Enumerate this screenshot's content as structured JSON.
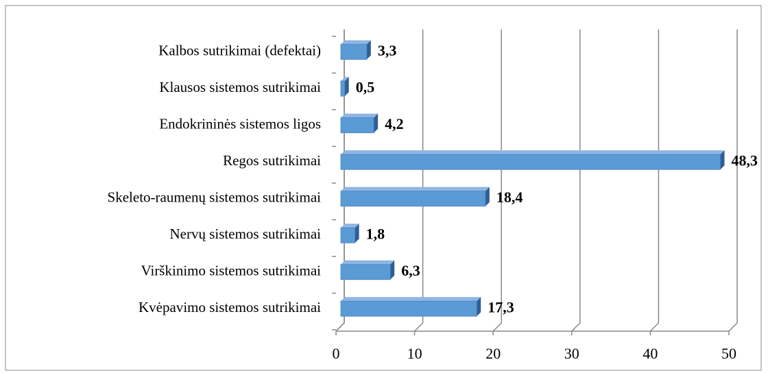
{
  "chart_data": {
    "type": "bar",
    "categories": [
      "Kalbos sutrikimai (defektai)",
      "Klausos sistemos sutrikimai",
      "Endokrininės sistemos ligos",
      "Regos sutrikimai",
      "Skeleto-raumenų sistemos sutrikimai",
      "Nervų sistemos sutrikimai",
      "Virškinimo sistemos sutrikimai",
      "Kvėpavimo sistemos sutrikimai"
    ],
    "values": [
      3.3,
      0.5,
      4.2,
      48.3,
      18.4,
      1.8,
      6.3,
      17.3
    ],
    "value_labels": [
      "3,3",
      "0,5",
      "4,2",
      "48,3",
      "18,4",
      "1,8",
      "6,3",
      "17,3"
    ],
    "color": "#5b9bd5",
    "xlim": [
      0,
      50
    ],
    "xticks": [
      0,
      10,
      20,
      30,
      40,
      50
    ],
    "grid": true
  }
}
